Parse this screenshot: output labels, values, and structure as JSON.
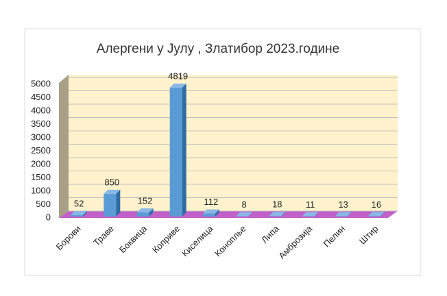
{
  "chart_data": {
    "type": "bar",
    "title": "Алергени у Јулу , Златибор 2023.године",
    "categories": [
      "Борови",
      "Траве",
      "Боквица",
      "Коприве",
      "Киселица",
      "Коноплье",
      "Липа",
      "Амброзија",
      "Пелин",
      "Штир"
    ],
    "values": [
      52,
      850,
      152,
      4819,
      112,
      8,
      18,
      11,
      13,
      16
    ],
    "color": "#5b9bd5",
    "ylim": [
      0,
      5000
    ],
    "yticks": [
      0,
      500,
      1000,
      1500,
      2000,
      2500,
      3000,
      3500,
      4000,
      4500,
      5000
    ],
    "grid": true
  }
}
